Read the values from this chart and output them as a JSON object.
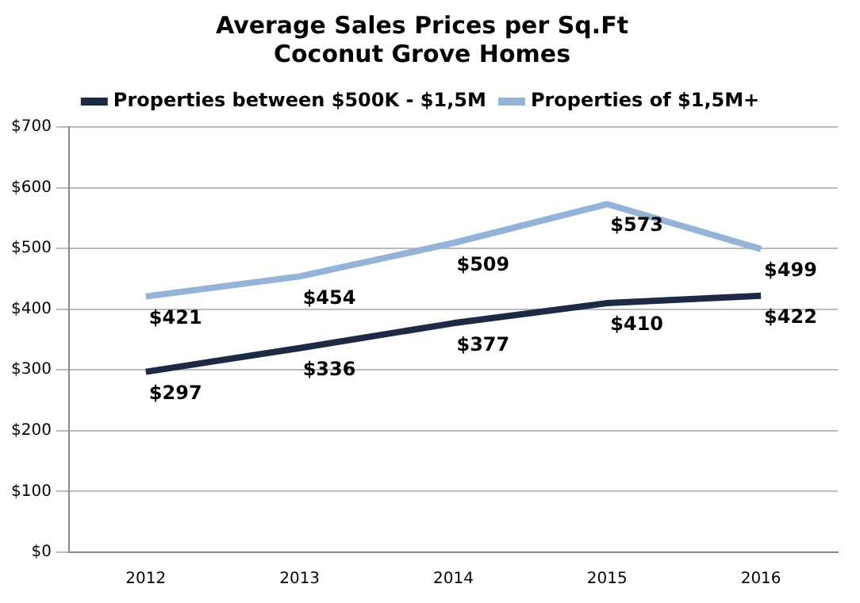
{
  "chart_data": {
    "type": "line",
    "title": "Average Sales Prices per Sq.Ft\nCoconut Grove Homes",
    "categories": [
      "2012",
      "2013",
      "2014",
      "2015",
      "2016"
    ],
    "series": [
      {
        "name": "Properties between $500K - $1,5M",
        "color": "#1c2a44",
        "values": [
          297,
          336,
          377,
          410,
          422
        ],
        "value_labels": [
          "$297",
          "$336",
          "$377",
          "$410",
          "$422"
        ]
      },
      {
        "name": "Properties of $1,5M+",
        "color": "#95b3d7",
        "values": [
          421,
          454,
          509,
          573,
          499
        ],
        "value_labels": [
          "$421",
          "$454",
          "$509",
          "$573",
          "$499"
        ]
      }
    ],
    "ylim": [
      0,
      700
    ],
    "yticks": [
      {
        "value": 0,
        "label": "$0"
      },
      {
        "value": 100,
        "label": "$100"
      },
      {
        "value": 200,
        "label": "$200"
      },
      {
        "value": 300,
        "label": "$300"
      },
      {
        "value": 400,
        "label": "$400"
      },
      {
        "value": 500,
        "label": "$500"
      },
      {
        "value": 600,
        "label": "$600"
      },
      {
        "value": 700,
        "label": "$700"
      }
    ],
    "grid": "y",
    "legend": "top",
    "marker": "none",
    "line_style": "solid"
  }
}
